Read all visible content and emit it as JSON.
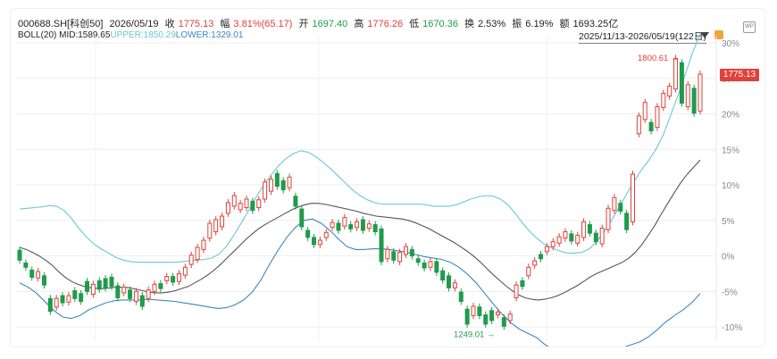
{
  "header": {
    "code": "000688.SH[科创50]",
    "date": "2026/05/19",
    "close_label": "收",
    "close": "1775.13",
    "change_label": "幅",
    "change": "3.81%(65.17)",
    "open_label": "开",
    "open": "1697.40",
    "high_label": "高",
    "high": "1776.26",
    "low_label": "低",
    "low": "1670.36",
    "turnover_label": "换",
    "turnover": "2.53%",
    "amplitude_label": "振",
    "amplitude": "6.19%",
    "amount_label": "额",
    "amount": "1693.25亿"
  },
  "boll": {
    "name": "BOLL(20)",
    "mid": "MID:1589.65",
    "upper": "UPPER:1850.29",
    "lower": "LOWER:1329.01"
  },
  "range_label": "2025/11/13-2026/05/19(122日)",
  "colors": {
    "up": "#e0413a",
    "down": "#1e9b4b",
    "mid": "#555555",
    "upper": "#6cc6d6",
    "lower": "#3d87c4"
  },
  "chart_data": {
    "type": "candlestick",
    "ylabels": [
      "30%",
      "25%",
      "20%",
      "15%",
      "10%",
      "5%",
      "0%",
      "-5%",
      "-10%"
    ],
    "ylim_pct": [
      -12,
      31
    ],
    "last_price": "1775.13",
    "annotations": [
      {
        "label": "1800.61",
        "pct": 28.0
      },
      {
        "label": "1249.01",
        "pct": -10.9
      }
    ],
    "candles_pct": [
      [
        0.8,
        -0.6
      ],
      [
        -1.0,
        -1.6
      ],
      [
        -2.0,
        -3.0
      ],
      [
        -3.1,
        -2.2
      ],
      [
        -2.8,
        -4.1
      ],
      [
        -6.0,
        -7.8
      ],
      [
        -7.2,
        -6.0
      ],
      [
        -5.6,
        -6.6
      ],
      [
        -6.5,
        -5.6
      ],
      [
        -4.9,
        -6.0
      ],
      [
        -5.3,
        -6.4
      ],
      [
        -3.6,
        -5.0
      ],
      [
        -5.4,
        -4.0
      ],
      [
        -3.5,
        -4.7
      ],
      [
        -3.2,
        -4.5
      ],
      [
        -3.0,
        -4.3
      ],
      [
        -4.2,
        -5.9
      ],
      [
        -5.2,
        -4.4
      ],
      [
        -4.8,
        -6.0
      ],
      [
        -6.4,
        -5.0
      ],
      [
        -5.6,
        -7.1
      ],
      [
        -6.0,
        -4.8
      ],
      [
        -5.0,
        -4.0
      ],
      [
        -3.9,
        -4.6
      ],
      [
        -3.5,
        -2.9
      ],
      [
        -2.9,
        -3.7
      ],
      [
        -3.6,
        -2.5
      ],
      [
        -2.7,
        -1.6
      ],
      [
        -1.2,
        0.1
      ],
      [
        -0.5,
        1.2
      ],
      [
        0.9,
        2.2
      ],
      [
        2.5,
        4.6
      ],
      [
        3.4,
        5.1
      ],
      [
        4.1,
        5.6
      ],
      [
        6.0,
        7.5
      ],
      [
        7.0,
        8.5
      ],
      [
        6.5,
        7.4
      ],
      [
        6.8,
        8.0
      ],
      [
        7.7,
        6.4
      ],
      [
        6.8,
        7.9
      ],
      [
        8.0,
        10.4
      ],
      [
        9.1,
        10.8
      ],
      [
        11.6,
        9.8
      ],
      [
        10.6,
        9.3
      ],
      [
        9.6,
        11.1
      ],
      [
        8.4,
        7.0
      ],
      [
        6.6,
        4.1
      ],
      [
        3.6,
        2.6
      ],
      [
        2.6,
        1.6
      ],
      [
        1.6,
        2.2
      ],
      [
        2.6,
        3.3
      ],
      [
        4.0,
        4.7
      ],
      [
        4.6,
        3.6
      ],
      [
        4.2,
        5.4
      ],
      [
        4.4,
        3.8
      ],
      [
        4.0,
        4.8
      ],
      [
        5.1,
        3.6
      ],
      [
        3.9,
        4.5
      ],
      [
        4.4,
        3.4
      ],
      [
        3.8,
        -0.8
      ],
      [
        -0.4,
        0.9
      ],
      [
        0.6,
        -0.6
      ],
      [
        -0.8,
        0.5
      ],
      [
        0.2,
        1.3
      ],
      [
        0.9,
        0.0
      ],
      [
        -0.4,
        -0.9
      ],
      [
        -1.0,
        -1.7
      ],
      [
        -1.6,
        -0.8
      ],
      [
        -0.8,
        -2.3
      ],
      [
        -2.1,
        -3.4
      ],
      [
        -2.8,
        -4.5
      ],
      [
        -4.5,
        -3.8
      ],
      [
        -5.1,
        -6.4
      ],
      [
        -7.5,
        -9.6
      ],
      [
        -8.4,
        -7.1
      ],
      [
        -7.2,
        -8.4
      ],
      [
        -8.3,
        -9.6
      ],
      [
        -7.7,
        -9.1
      ],
      [
        -8.3,
        -7.9
      ],
      [
        -8.7,
        -9.9
      ],
      [
        -9.1,
        -8.2
      ],
      [
        -5.9,
        -4.1
      ],
      [
        -3.5,
        -4.3
      ],
      [
        -2.8,
        -1.6
      ],
      [
        -1.3,
        -0.7
      ],
      [
        0.2,
        -0.4
      ],
      [
        0.6,
        1.3
      ],
      [
        1.3,
        2.0
      ],
      [
        1.8,
        2.7
      ],
      [
        2.5,
        3.4
      ],
      [
        3.1,
        2.1
      ],
      [
        1.8,
        2.9
      ],
      [
        2.6,
        4.8
      ],
      [
        4.4,
        3.2
      ],
      [
        3.2,
        2.0
      ],
      [
        1.7,
        3.9
      ],
      [
        3.7,
        6.7
      ],
      [
        6.4,
        8.2
      ],
      [
        7.4,
        6.3
      ],
      [
        6.0,
        3.7
      ],
      [
        4.8,
        11.5
      ],
      [
        17.2,
        19.7
      ],
      [
        19.2,
        21.6
      ],
      [
        18.8,
        17.6
      ],
      [
        18.1,
        21.0
      ],
      [
        20.9,
        22.9
      ],
      [
        22.5,
        23.9
      ],
      [
        23.5,
        27.8
      ],
      [
        27.2,
        21.5
      ],
      [
        21.0,
        24.1
      ],
      [
        23.6,
        20.1
      ],
      [
        20.4,
        25.6
      ]
    ],
    "mid_pct": [
      1.2,
      0.9,
      0.5,
      0.0,
      -0.6,
      -1.3,
      -2.2,
      -3.0,
      -3.6,
      -4.0,
      -4.3,
      -4.5,
      -4.6,
      -4.6,
      -4.5,
      -4.4,
      -4.4,
      -4.5,
      -4.7,
      -4.9,
      -5.1,
      -5.2,
      -5.2,
      -5.1,
      -4.9,
      -4.6,
      -4.3,
      -3.8,
      -3.3,
      -2.7,
      -2.0,
      -1.2,
      -0.3,
      0.6,
      1.5,
      2.4,
      3.2,
      3.9,
      4.5,
      5.0,
      5.5,
      6.0,
      6.5,
      6.9,
      7.2,
      7.4,
      7.4,
      7.3,
      7.1,
      6.9,
      6.7,
      6.5,
      6.3,
      6.0,
      5.8,
      5.6,
      5.5,
      5.4,
      5.3,
      5.2,
      5.0,
      4.7,
      4.3,
      3.9,
      3.4,
      2.9,
      2.4,
      1.9,
      1.3,
      0.7,
      0.0,
      -0.8,
      -1.7,
      -2.6,
      -3.4,
      -4.2,
      -4.9,
      -5.5,
      -5.9,
      -6.1,
      -6.2,
      -6.1,
      -5.9,
      -5.6,
      -5.2,
      -4.7,
      -4.2,
      -3.6,
      -3.0,
      -2.5,
      -2.1,
      -1.7,
      -1.3,
      -0.9,
      -0.3,
      0.5,
      1.6,
      2.9,
      4.3,
      5.9,
      7.4,
      8.9,
      10.3,
      11.5,
      12.5,
      13.5
    ],
    "upper_pct": [
      6.6,
      6.7,
      6.8,
      6.9,
      7.1,
      7.0,
      6.4,
      5.3,
      3.9,
      2.7,
      1.7,
      1.0,
      0.4,
      -0.2,
      -0.6,
      -0.8,
      -0.9,
      -0.9,
      -0.9,
      -0.9,
      -0.9,
      -0.9,
      -0.8,
      -0.7,
      -0.6,
      -0.5,
      -0.3,
      0.3,
      1.4,
      3.0,
      4.7,
      6.5,
      8.3,
      10.0,
      11.4,
      12.7,
      13.7,
      14.4,
      14.8,
      14.6,
      14.0,
      13.2,
      12.3,
      11.3,
      10.3,
      9.3,
      8.5,
      7.9,
      7.5,
      7.3,
      7.3,
      7.3,
      7.3,
      7.3,
      7.3,
      7.2,
      7.0,
      7.0,
      7.0,
      7.2,
      7.6,
      8.0,
      8.3,
      8.5,
      8.4,
      8.0,
      7.2,
      6.0,
      4.6,
      3.4,
      2.4,
      1.6,
      1.1,
      0.7,
      0.4,
      0.4,
      0.5,
      1.0,
      2.0,
      3.4,
      5.0,
      6.8,
      8.6,
      10.4,
      12.0,
      13.4,
      15.0,
      17.0,
      19.8,
      22.6,
      25.6,
      28.7,
      31.3
    ],
    "lower_pct": [
      -3.8,
      -4.4,
      -5.3,
      -6.5,
      -7.7,
      -8.6,
      -8.8,
      -8.4,
      -7.6,
      -7.1,
      -6.6,
      -6.3,
      -6.2,
      -6.2,
      -6.2,
      -6.1,
      -6.2,
      -6.3,
      -6.4,
      -6.6,
      -6.8,
      -7.0,
      -7.2,
      -7.4,
      -7.3,
      -6.9,
      -6.2,
      -5.1,
      -3.4,
      -1.2,
      0.8,
      2.6,
      4.0,
      5.0,
      5.2,
      4.6,
      3.6,
      2.4,
      1.3,
      0.9,
      0.9,
      1.0,
      1.0,
      0.9,
      0.7,
      0.5,
      0.2,
      -0.1,
      -0.3,
      -0.5,
      -0.9,
      -1.6,
      -2.6,
      -3.8,
      -5.3,
      -6.8,
      -8.2,
      -9.4,
      -10.3,
      -10.9,
      -11.5,
      -12.5,
      -13.3,
      -13.8,
      -14.0,
      -14.0,
      -13.9,
      -13.8,
      -13.5,
      -13.2,
      -12.9,
      -12.5,
      -12.1,
      -11.4,
      -10.4,
      -9.3,
      -8.4,
      -7.6,
      -6.6,
      -5.3
    ]
  }
}
